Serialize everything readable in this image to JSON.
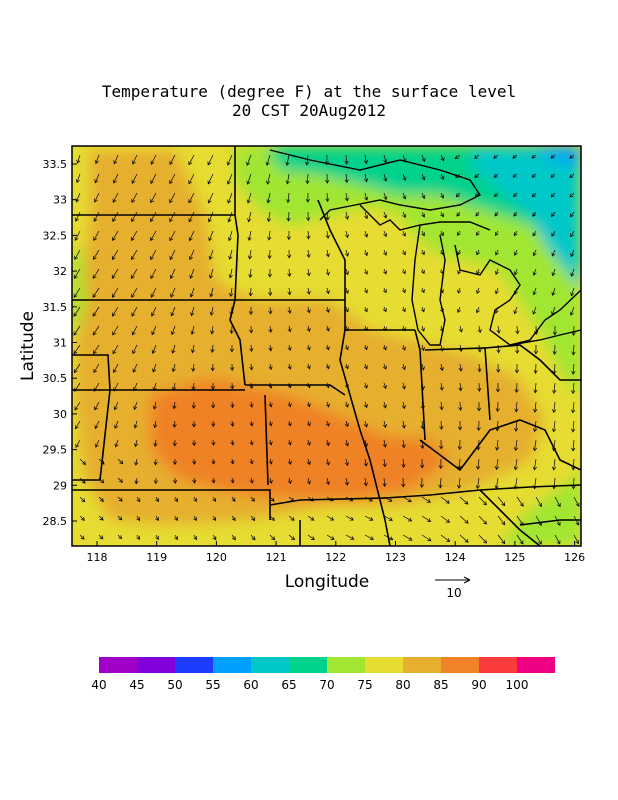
{
  "title": {
    "line1": "Temperature (degree F) at the surface level",
    "line2": "20 CST 20Aug2012"
  },
  "axes": {
    "xlabel": "Longitude",
    "ylabel": "Latitude",
    "x_ticks": [
      "118",
      "119",
      "120",
      "121",
      "122",
      "123",
      "124",
      "125",
      "126"
    ],
    "y_ticks": [
      "33.5",
      "33",
      "32.5",
      "32",
      "31.5",
      "31",
      "30.5",
      "30",
      "29.5",
      "29",
      "28.5"
    ]
  },
  "vector_reference": {
    "label": "10"
  },
  "colorbar": {
    "colors": [
      "#a000c8",
      "#8200dc",
      "#1e3cff",
      "#00a0ff",
      "#00c8c8",
      "#00d28c",
      "#a0e632",
      "#e6dc32",
      "#e6af2d",
      "#f08228",
      "#fa3c3c",
      "#f00082"
    ],
    "labels": [
      "40",
      "45",
      "50",
      "55",
      "60",
      "65",
      "70",
      "75",
      "80",
      "85",
      "90",
      "100"
    ]
  }
}
